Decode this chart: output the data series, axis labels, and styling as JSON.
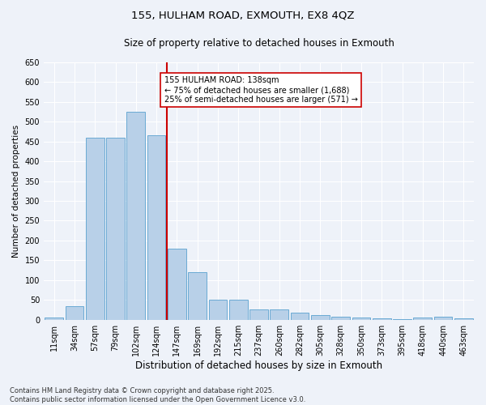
{
  "title1": "155, HULHAM ROAD, EXMOUTH, EX8 4QZ",
  "title2": "Size of property relative to detached houses in Exmouth",
  "xlabel": "Distribution of detached houses by size in Exmouth",
  "ylabel": "Number of detached properties",
  "categories": [
    "11sqm",
    "34sqm",
    "57sqm",
    "79sqm",
    "102sqm",
    "124sqm",
    "147sqm",
    "169sqm",
    "192sqm",
    "215sqm",
    "237sqm",
    "260sqm",
    "282sqm",
    "305sqm",
    "328sqm",
    "350sqm",
    "373sqm",
    "395sqm",
    "418sqm",
    "440sqm",
    "463sqm"
  ],
  "values": [
    5,
    35,
    460,
    460,
    525,
    465,
    180,
    120,
    50,
    50,
    25,
    25,
    17,
    12,
    8,
    5,
    4,
    2,
    5,
    7,
    4
  ],
  "bar_color": "#b8d0e8",
  "bar_edge_color": "#6aaad4",
  "vline_color": "#cc0000",
  "annotation_text": "155 HULHAM ROAD: 138sqm\n← 75% of detached houses are smaller (1,688)\n25% of semi-detached houses are larger (571) →",
  "annotation_box_color": "#ffffff",
  "annotation_box_edge": "#cc0000",
  "footer": "Contains HM Land Registry data © Crown copyright and database right 2025.\nContains public sector information licensed under the Open Government Licence v3.0.",
  "ylim": [
    0,
    650
  ],
  "bg_color": "#eef2f9",
  "grid_color": "#ffffff",
  "title_fontsize": 9.5,
  "subtitle_fontsize": 8.5,
  "xlabel_fontsize": 8.5,
  "ylabel_fontsize": 7.5,
  "tick_fontsize": 7,
  "annot_fontsize": 7,
  "footer_fontsize": 6
}
